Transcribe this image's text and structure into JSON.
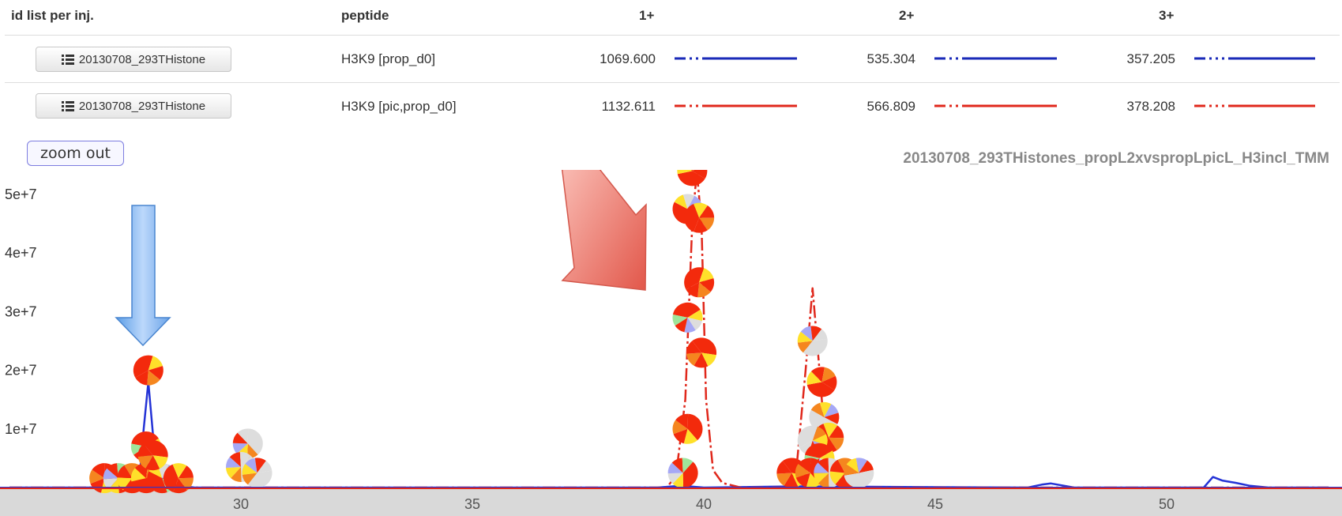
{
  "table": {
    "headers": [
      "id list per inj.",
      "peptide",
      "1+",
      "2+",
      "3+"
    ],
    "rows": [
      {
        "id_button": "20130708_293THistone",
        "peptide": "H3K9 [prop_d0]",
        "mz1": "1069.600",
        "mz2": "535.304",
        "mz3": "357.205",
        "color": "#1a2ab8"
      },
      {
        "id_button": "20130708_293THistone",
        "peptide": "H3K9 [pic,prop_d0]",
        "mz1": "1132.611",
        "mz2": "566.809",
        "mz3": "378.208",
        "color": "#e0281c"
      }
    ]
  },
  "zoom_label": "zoom out",
  "icons": {
    "list": "list-icon",
    "blue_arrow": "down-arrow-icon",
    "red_arrow": "diagonal-arrow-icon"
  },
  "chart_data": {
    "type": "line",
    "title": "20130708_293THistones_propL2xvspropLpicL_H3incl_TMM",
    "xlim": [
      25,
      53.5
    ],
    "ylim": [
      0,
      58000000
    ],
    "xticks": [
      30,
      35,
      40,
      45,
      50
    ],
    "yticks": [
      10000000,
      20000000,
      30000000,
      40000000,
      50000000
    ],
    "ytick_labels": [
      "1e+7",
      "2e+7",
      "3e+7",
      "4e+7",
      "5e+7"
    ],
    "series": [
      {
        "color": "#2433d6",
        "x": [
          25,
          27.5,
          27.8,
          27.9,
          28.0,
          28.1,
          28.2,
          28.5,
          29,
          39,
          39.5,
          40,
          42,
          47,
          47.3,
          47.5,
          48,
          50.8,
          51.0,
          51.2,
          51.5,
          51.8,
          52.2,
          53.5
        ],
        "y": [
          0,
          0,
          1000000,
          10000000,
          18000000,
          9000000,
          2000000,
          500000,
          0,
          0,
          300000,
          0,
          200000,
          0,
          500000,
          700000,
          0,
          0,
          1800000,
          1200000,
          800000,
          300000,
          0,
          0
        ]
      },
      {
        "color": "#e0281c",
        "x": [
          25,
          39.2,
          39.4,
          39.6,
          39.75,
          39.85,
          39.95,
          40.05,
          40.2,
          40.4,
          40.8,
          41.8,
          42.0,
          42.2,
          42.35,
          42.5,
          42.65,
          42.8,
          43.0,
          43.3,
          53.5
        ],
        "y": [
          0,
          0,
          2000000,
          15000000,
          45000000,
          54000000,
          45000000,
          15000000,
          3000000,
          800000,
          0,
          0,
          3000000,
          20000000,
          34000000,
          20000000,
          5000000,
          1500000,
          500000,
          0,
          0
        ]
      }
    ],
    "markers": [
      {
        "x": 27.05,
        "y": 1600000
      },
      {
        "x": 27.35,
        "y": 1600000
      },
      {
        "x": 27.65,
        "y": 1600000
      },
      {
        "x": 27.95,
        "y": 1600000
      },
      {
        "x": 28.3,
        "y": 1600000
      },
      {
        "x": 28.65,
        "y": 1600000
      },
      {
        "x": 28.0,
        "y": 20000000
      },
      {
        "x": 27.95,
        "y": 7000000
      },
      {
        "x": 28.1,
        "y": 5500000
      },
      {
        "x": 30.15,
        "y": 7500000
      },
      {
        "x": 30.0,
        "y": 3500000
      },
      {
        "x": 30.35,
        "y": 2500000
      },
      {
        "x": 39.75,
        "y": 54000000
      },
      {
        "x": 39.65,
        "y": 47500000
      },
      {
        "x": 39.9,
        "y": 46000000
      },
      {
        "x": 39.9,
        "y": 35000000
      },
      {
        "x": 39.65,
        "y": 29000000
      },
      {
        "x": 39.95,
        "y": 23000000
      },
      {
        "x": 39.65,
        "y": 10000000
      },
      {
        "x": 39.55,
        "y": 2500000
      },
      {
        "x": 42.35,
        "y": 25000000
      },
      {
        "x": 42.55,
        "y": 18000000
      },
      {
        "x": 42.6,
        "y": 12000000
      },
      {
        "x": 42.7,
        "y": 8500000
      },
      {
        "x": 42.35,
        "y": 8000000
      },
      {
        "x": 42.5,
        "y": 5000000
      },
      {
        "x": 41.9,
        "y": 2500000
      },
      {
        "x": 42.3,
        "y": 2500000
      },
      {
        "x": 42.7,
        "y": 2500000
      },
      {
        "x": 43.05,
        "y": 2500000
      },
      {
        "x": 43.35,
        "y": 2500000
      }
    ]
  }
}
